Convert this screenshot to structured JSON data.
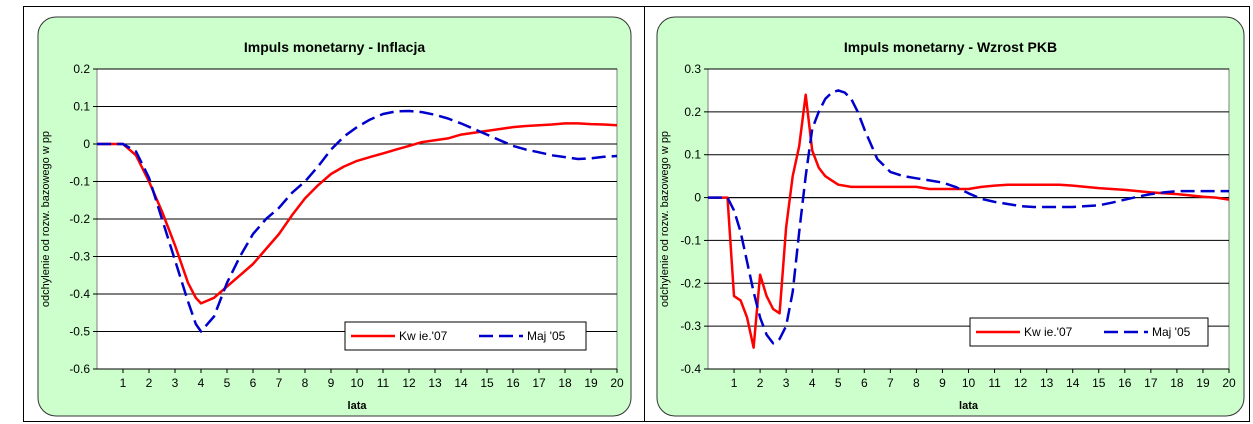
{
  "chart_data": [
    {
      "type": "line",
      "title": "Impuls monetarny - Inflacja",
      "xlabel": "lata",
      "ylabel": "odchylenie od rozw. bazowego w pp",
      "ylim": [
        -0.6,
        0.2
      ],
      "yticks": [
        0.2,
        0.1,
        0,
        -0.1,
        -0.2,
        -0.3,
        -0.4,
        -0.5,
        -0.6
      ],
      "ytick_labels": [
        "0.2",
        "0.1",
        "0",
        "-0.1",
        "-0.2",
        "-0.3",
        "-0.4",
        "-0.5",
        "-0.6"
      ],
      "xticks": [
        1,
        2,
        3,
        4,
        5,
        6,
        7,
        8,
        9,
        10,
        11,
        12,
        13,
        14,
        15,
        16,
        17,
        18,
        19,
        20
      ],
      "xlim": [
        0,
        20
      ],
      "grid": true,
      "legend_position": "bottom-right",
      "series": [
        {
          "name": "Kw ie.'07",
          "color": "#ff0000",
          "dash": "solid",
          "x": [
            0,
            0.5,
            1,
            1.5,
            2,
            2.5,
            3,
            3.5,
            3.8,
            4,
            4.5,
            5,
            5.5,
            6,
            6.5,
            7,
            7.5,
            8,
            8.5,
            9,
            9.5,
            10,
            10.5,
            11,
            11.5,
            12,
            12.5,
            13,
            13.5,
            14,
            14.5,
            15,
            15.5,
            16,
            16.5,
            17,
            17.5,
            18,
            18.5,
            19,
            19.5,
            20
          ],
          "values": [
            0,
            0,
            0,
            -0.03,
            -0.1,
            -0.18,
            -0.27,
            -0.37,
            -0.41,
            -0.425,
            -0.41,
            -0.38,
            -0.35,
            -0.32,
            -0.28,
            -0.24,
            -0.19,
            -0.145,
            -0.11,
            -0.08,
            -0.06,
            -0.045,
            -0.035,
            -0.025,
            -0.015,
            -0.005,
            0.005,
            0.01,
            0.015,
            0.025,
            0.03,
            0.035,
            0.04,
            0.045,
            0.048,
            0.05,
            0.052,
            0.055,
            0.055,
            0.053,
            0.052,
            0.05
          ]
        },
        {
          "name": "Maj '05",
          "color": "#0000cc",
          "dash": "dashed",
          "x": [
            0,
            0.5,
            1,
            1.5,
            2,
            2.5,
            3,
            3.5,
            3.8,
            4,
            4.5,
            5,
            5.5,
            6,
            6.5,
            7,
            7.5,
            8,
            8.5,
            9,
            9.5,
            10,
            10.5,
            11,
            11.5,
            12,
            12.5,
            13,
            13.5,
            14,
            14.5,
            15,
            15.5,
            16,
            16.5,
            17,
            17.5,
            18,
            18.5,
            19,
            19.5,
            20
          ],
          "values": [
            0,
            0,
            0,
            -0.02,
            -0.09,
            -0.2,
            -0.31,
            -0.42,
            -0.48,
            -0.5,
            -0.46,
            -0.37,
            -0.3,
            -0.24,
            -0.2,
            -0.17,
            -0.13,
            -0.1,
            -0.06,
            -0.015,
            0.02,
            0.045,
            0.065,
            0.08,
            0.087,
            0.088,
            0.085,
            0.078,
            0.068,
            0.055,
            0.04,
            0.025,
            0.01,
            -0.005,
            -0.015,
            -0.022,
            -0.03,
            -0.035,
            -0.04,
            -0.038,
            -0.034,
            -0.032
          ]
        }
      ]
    },
    {
      "type": "line",
      "title": "Impuls monetarny - Wzrost PKB",
      "xlabel": "lata",
      "ylabel": "odchylenie od rozw. bazowego w pp",
      "ylim": [
        -0.4,
        0.3
      ],
      "yticks": [
        0.3,
        0.2,
        0.1,
        0,
        -0.1,
        -0.2,
        -0.3,
        -0.4
      ],
      "ytick_labels": [
        "0.3",
        "0.2",
        "0.1",
        "0",
        "-0.1",
        "-0.2",
        "-0.3",
        "-0.4"
      ],
      "xticks": [
        1,
        2,
        3,
        4,
        5,
        6,
        7,
        8,
        9,
        10,
        11,
        12,
        13,
        14,
        15,
        16,
        17,
        18,
        19,
        20
      ],
      "xlim": [
        0,
        20
      ],
      "grid": true,
      "legend_position": "bottom-right",
      "series": [
        {
          "name": "Kw ie.'07",
          "color": "#ff0000",
          "dash": "solid",
          "x": [
            0,
            0.75,
            1,
            1.25,
            1.5,
            1.75,
            2,
            2.25,
            2.5,
            2.75,
            3,
            3.25,
            3.5,
            3.75,
            4,
            4.25,
            4.5,
            4.75,
            5,
            5.5,
            6,
            6.5,
            7,
            7.5,
            8,
            8.5,
            9,
            9.5,
            10,
            10.5,
            11,
            11.5,
            12,
            12.5,
            13,
            13.5,
            14,
            14.5,
            15,
            15.5,
            16,
            16.5,
            17,
            17.5,
            18,
            18.5,
            19,
            19.5,
            20
          ],
          "values": [
            0,
            0,
            -0.23,
            -0.24,
            -0.28,
            -0.35,
            -0.18,
            -0.23,
            -0.26,
            -0.27,
            -0.07,
            0.05,
            0.12,
            0.24,
            0.11,
            0.07,
            0.05,
            0.04,
            0.03,
            0.025,
            0.025,
            0.025,
            0.025,
            0.025,
            0.025,
            0.02,
            0.02,
            0.02,
            0.02,
            0.025,
            0.028,
            0.03,
            0.03,
            0.03,
            0.03,
            0.03,
            0.028,
            0.025,
            0.022,
            0.02,
            0.018,
            0.015,
            0.012,
            0.01,
            0.008,
            0.005,
            0.002,
            0,
            -0.005
          ]
        },
        {
          "name": "Maj '05",
          "color": "#0000cc",
          "dash": "dashed",
          "x": [
            0,
            0.75,
            1,
            1.25,
            1.5,
            1.75,
            2,
            2.25,
            2.5,
            2.75,
            3,
            3.25,
            3.5,
            3.75,
            4,
            4.25,
            4.5,
            4.75,
            5,
            5.25,
            5.5,
            5.75,
            6,
            6.5,
            7,
            7.5,
            8,
            8.5,
            9,
            9.5,
            10,
            10.5,
            11,
            11.5,
            12,
            12.5,
            13,
            13.5,
            14,
            14.5,
            15,
            15.5,
            16,
            16.5,
            17,
            17.5,
            18,
            18.5,
            19,
            19.5,
            20
          ],
          "values": [
            0,
            0,
            -0.03,
            -0.08,
            -0.15,
            -0.22,
            -0.28,
            -0.32,
            -0.34,
            -0.33,
            -0.3,
            -0.22,
            -0.08,
            0.05,
            0.16,
            0.2,
            0.23,
            0.245,
            0.25,
            0.245,
            0.23,
            0.2,
            0.16,
            0.09,
            0.06,
            0.05,
            0.045,
            0.04,
            0.035,
            0.025,
            0.01,
            -0.003,
            -0.01,
            -0.015,
            -0.02,
            -0.022,
            -0.022,
            -0.022,
            -0.022,
            -0.02,
            -0.018,
            -0.012,
            -0.005,
            0.002,
            0.008,
            0.012,
            0.015,
            0.015,
            0.015,
            0.015,
            0.015
          ]
        }
      ]
    }
  ]
}
